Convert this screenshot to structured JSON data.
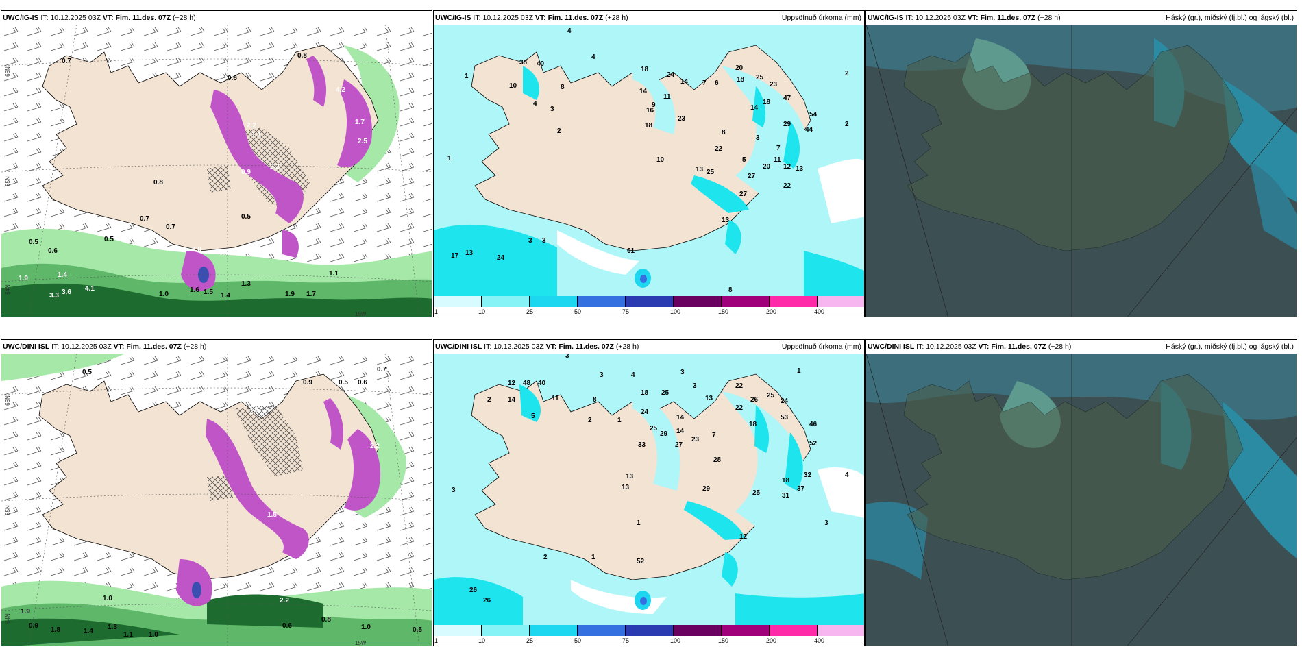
{
  "panels": {
    "p1": {
      "model": "UWC/IG-IS",
      "it_label": "IT:",
      "it": "10.12.2025 03Z",
      "vt_label": "VT:",
      "vt": "Fim. 11.des. 07Z",
      "lead": "(+28 h)",
      "right": ""
    },
    "p2": {
      "model": "UWC/IG-IS",
      "it_label": "IT:",
      "it": "10.12.2025 03Z",
      "vt_label": "VT:",
      "vt": "Fim. 11.des. 07Z",
      "lead": "(+28 h)",
      "right": "Uppsöfnuð úrkoma (mm)"
    },
    "p3": {
      "model": "UWC/IG-IS",
      "it_label": "IT:",
      "it": "10.12.2025 03Z",
      "vt_label": "VT:",
      "vt": "Fim. 11.des. 07Z",
      "lead": "(+28 h)",
      "right": "Háský (gr.), miðský (fj.bl.) og lágský (bl.)"
    },
    "p4": {
      "model": "UWC/DINI ISL",
      "it_label": "IT:",
      "it": "10.12.2025 03Z",
      "vt_label": "VT:",
      "vt": "Fim. 11.des. 07Z",
      "lead": "(+28 h)",
      "right": ""
    },
    "p5": {
      "model": "UWC/DINI ISL",
      "it_label": "IT:",
      "it": "10.12.2025 03Z",
      "vt_label": "VT:",
      "vt": "Fim. 11.des. 07Z",
      "lead": "(+28 h)",
      "right": "Uppsöfnuð úrkoma (mm)"
    },
    "p6": {
      "model": "UWC/DINI ISL",
      "it_label": "IT:",
      "it": "10.12.2025 03Z",
      "vt_label": "VT:",
      "vt": "Fim. 11.des. 07Z",
      "lead": "(+28 h)",
      "right": "Háský (gr.), miðský (fj.bl.) og lágský (bl.)"
    }
  },
  "colorbar": {
    "ticks": [
      "1",
      "10",
      "25",
      "50",
      "75",
      "100",
      "150",
      "200",
      "400"
    ],
    "colors": [
      "#d8fbff",
      "#86f4f7",
      "#1dd6f0",
      "#3470e0",
      "#2a3ab0",
      "#6a0060",
      "#a0007a",
      "#ff2aa8",
      "#f8b6f0"
    ]
  },
  "colors": {
    "land": "#f2e3d3",
    "sea_precip": "#aff6f9",
    "precip_dark": "#1ee4ee",
    "snow_light": "#a5e8a8",
    "snow_dark": "#1d6b2e",
    "purple": "#c055c8",
    "cloud_dark": "#3c4f52",
    "cloud_mid": "#3c6e7c",
    "cloud_teal": "#2a8ba2"
  },
  "axis_labels": {
    "n66": "66N",
    "n65": "65N",
    "n64": "64N",
    "w15": "15W",
    "w20": "20W"
  },
  "labels": {
    "p1": [
      "0.7",
      "0.8",
      "0.8",
      "0.6",
      "0.5",
      "0.7",
      "0.7",
      "0.5",
      "0.6",
      "0.5",
      "1.9",
      "1.4",
      "3.3",
      "3.6",
      "4.1",
      "1.0",
      "1.6",
      "1.5",
      "1.3",
      "1.4",
      "1.9",
      "1.7",
      "1.1",
      "3.0",
      "2.2",
      "1.1",
      "2.2",
      "2.5",
      "1.7",
      "0.9",
      "4.2"
    ],
    "p2": [
      "4",
      "4",
      "1",
      "1",
      "10",
      "38",
      "40",
      "8",
      "4",
      "3",
      "2",
      "18",
      "24",
      "14",
      "7",
      "6",
      "14",
      "11",
      "9",
      "16",
      "18",
      "23",
      "20",
      "18",
      "25",
      "23",
      "47",
      "18",
      "14",
      "54",
      "29",
      "44",
      "2",
      "22",
      "8",
      "3",
      "5",
      "10",
      "7",
      "11",
      "20",
      "12",
      "13",
      "27",
      "22",
      "13",
      "25",
      "27",
      "13",
      "17",
      "24",
      "13",
      "3",
      "3",
      "8",
      "61",
      "2"
    ],
    "p4": [
      "0.5",
      "0.9",
      "0.5",
      "0.6",
      "0.7",
      "1.9",
      "1.0",
      "0.9",
      "1.8",
      "1.3",
      "1.4",
      "1.1",
      "1.0",
      "1.0",
      "0.6",
      "0.8",
      "0.5",
      "2.2",
      "2.5",
      "2.2",
      "1.5"
    ],
    "p5": [
      "3",
      "3",
      "4",
      "3",
      "3",
      "12",
      "48",
      "40",
      "2",
      "14",
      "11",
      "8",
      "5",
      "1",
      "2",
      "18",
      "24",
      "25",
      "14",
      "13",
      "22",
      "26",
      "25",
      "24",
      "1",
      "25",
      "29",
      "14",
      "22",
      "18",
      "53",
      "46",
      "52",
      "23",
      "33",
      "27",
      "28",
      "7",
      "3",
      "1",
      "4",
      "13",
      "13",
      "29",
      "25",
      "37",
      "32",
      "18",
      "31",
      "2",
      "1",
      "26",
      "26",
      "52",
      "12",
      "3"
    ]
  }
}
